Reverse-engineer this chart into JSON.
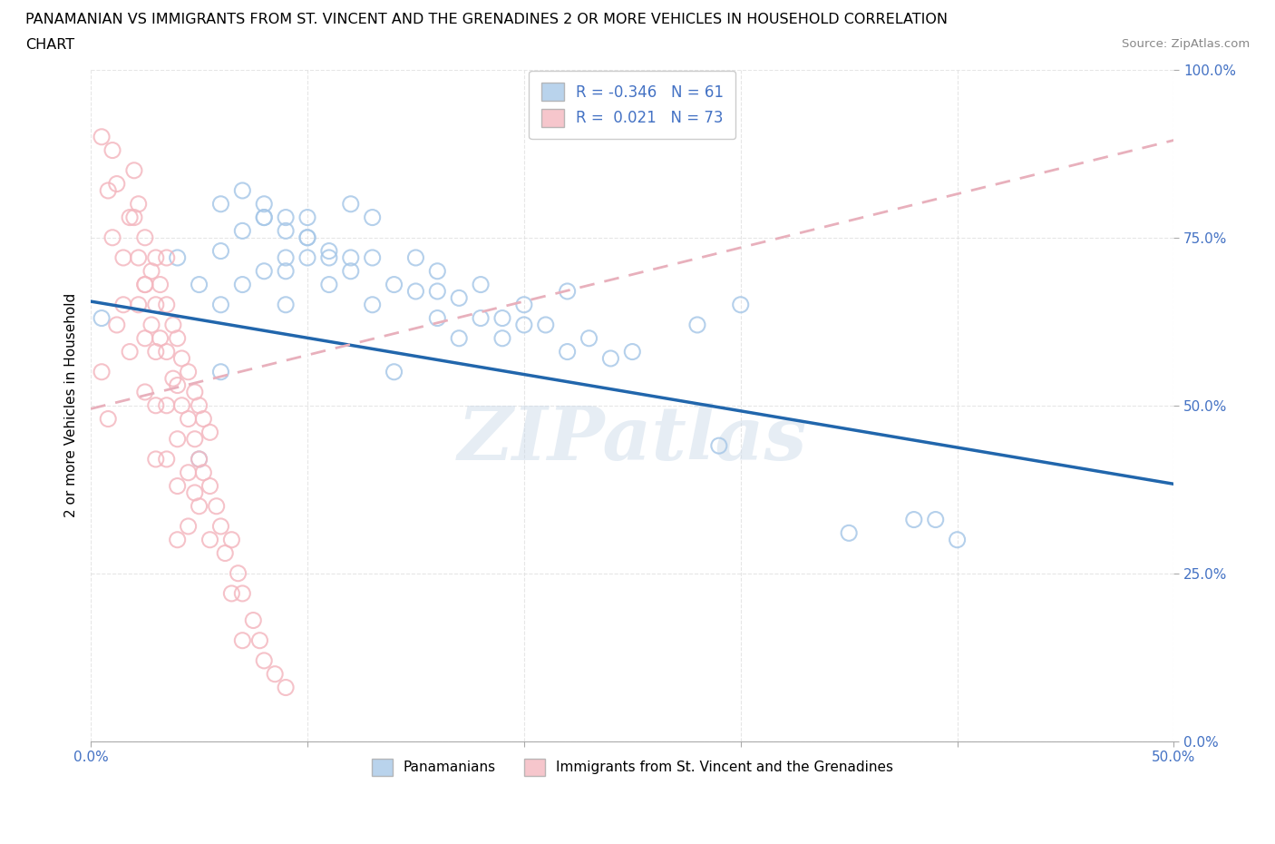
{
  "title_line1": "PANAMANIAN VS IMMIGRANTS FROM ST. VINCENT AND THE GRENADINES 2 OR MORE VEHICLES IN HOUSEHOLD CORRELATION",
  "title_line2": "CHART",
  "source_text": "Source: ZipAtlas.com",
  "ylabel": "2 or more Vehicles in Household",
  "xlim": [
    0,
    0.5
  ],
  "ylim": [
    0,
    1.0
  ],
  "xticks": [
    0.0,
    0.1,
    0.2,
    0.3,
    0.4,
    0.5
  ],
  "xticklabels_show": [
    "0.0%",
    "",
    "",
    "",
    "",
    "50.0%"
  ],
  "yticks": [
    0.0,
    0.25,
    0.5,
    0.75,
    1.0
  ],
  "yticklabels": [
    "0.0%",
    "25.0%",
    "50.0%",
    "75.0%",
    "100.0%"
  ],
  "blue_R": -0.346,
  "blue_N": 61,
  "pink_R": 0.021,
  "pink_N": 73,
  "blue_color": "#a8c8e8",
  "pink_color": "#f4b8c0",
  "blue_edge_color": "#7aadd4",
  "pink_edge_color": "#e8909a",
  "blue_line_color": "#2166ac",
  "pink_line_color": "#e8b0bc",
  "blue_line_y0": 0.655,
  "blue_line_y1": 0.383,
  "pink_line_y0": 0.495,
  "pink_line_y1": 0.895,
  "blue_scatter_x": [
    0.005,
    0.13,
    0.04,
    0.06,
    0.08,
    0.09,
    0.1,
    0.11,
    0.12,
    0.05,
    0.06,
    0.07,
    0.08,
    0.09,
    0.1,
    0.06,
    0.07,
    0.08,
    0.09,
    0.11,
    0.12,
    0.13,
    0.14,
    0.15,
    0.16,
    0.07,
    0.08,
    0.09,
    0.1,
    0.15,
    0.16,
    0.17,
    0.18,
    0.19,
    0.2,
    0.21,
    0.23,
    0.24,
    0.3,
    0.28,
    0.06,
    0.05,
    0.14,
    0.29,
    0.39,
    0.4,
    0.09,
    0.1,
    0.11,
    0.35,
    0.38,
    0.2,
    0.22,
    0.18,
    0.25,
    0.19,
    0.22,
    0.12,
    0.16,
    0.13,
    0.17
  ],
  "blue_scatter_y": [
    0.63,
    0.78,
    0.72,
    0.8,
    0.78,
    0.76,
    0.75,
    0.73,
    0.8,
    0.68,
    0.73,
    0.76,
    0.78,
    0.7,
    0.72,
    0.65,
    0.68,
    0.7,
    0.65,
    0.68,
    0.7,
    0.72,
    0.68,
    0.67,
    0.7,
    0.82,
    0.8,
    0.78,
    0.78,
    0.72,
    0.67,
    0.66,
    0.63,
    0.6,
    0.65,
    0.62,
    0.6,
    0.57,
    0.65,
    0.62,
    0.55,
    0.42,
    0.55,
    0.44,
    0.33,
    0.3,
    0.72,
    0.75,
    0.72,
    0.31,
    0.33,
    0.62,
    0.58,
    0.68,
    0.58,
    0.63,
    0.67,
    0.72,
    0.63,
    0.65,
    0.6
  ],
  "pink_scatter_x": [
    0.005,
    0.008,
    0.01,
    0.01,
    0.012,
    0.015,
    0.015,
    0.018,
    0.02,
    0.02,
    0.022,
    0.022,
    0.022,
    0.025,
    0.025,
    0.025,
    0.025,
    0.028,
    0.028,
    0.03,
    0.03,
    0.03,
    0.03,
    0.03,
    0.032,
    0.032,
    0.035,
    0.035,
    0.035,
    0.035,
    0.038,
    0.038,
    0.04,
    0.04,
    0.04,
    0.04,
    0.04,
    0.042,
    0.042,
    0.045,
    0.045,
    0.045,
    0.045,
    0.048,
    0.048,
    0.048,
    0.05,
    0.05,
    0.05,
    0.052,
    0.052,
    0.055,
    0.055,
    0.055,
    0.058,
    0.06,
    0.062,
    0.065,
    0.065,
    0.068,
    0.07,
    0.07,
    0.075,
    0.078,
    0.08,
    0.085,
    0.09,
    0.005,
    0.008,
    0.012,
    0.018,
    0.025,
    0.035
  ],
  "pink_scatter_y": [
    0.9,
    0.82,
    0.88,
    0.75,
    0.83,
    0.72,
    0.65,
    0.78,
    0.85,
    0.78,
    0.8,
    0.72,
    0.65,
    0.75,
    0.68,
    0.6,
    0.52,
    0.7,
    0.62,
    0.72,
    0.65,
    0.58,
    0.5,
    0.42,
    0.68,
    0.6,
    0.65,
    0.58,
    0.5,
    0.42,
    0.62,
    0.54,
    0.6,
    0.53,
    0.45,
    0.38,
    0.3,
    0.57,
    0.5,
    0.55,
    0.48,
    0.4,
    0.32,
    0.52,
    0.45,
    0.37,
    0.5,
    0.42,
    0.35,
    0.48,
    0.4,
    0.46,
    0.38,
    0.3,
    0.35,
    0.32,
    0.28,
    0.3,
    0.22,
    0.25,
    0.22,
    0.15,
    0.18,
    0.15,
    0.12,
    0.1,
    0.08,
    0.55,
    0.48,
    0.62,
    0.58,
    0.68,
    0.72
  ],
  "watermark_text": "ZIPatlas",
  "background_color": "#ffffff",
  "grid_color": "#e0e0e0"
}
